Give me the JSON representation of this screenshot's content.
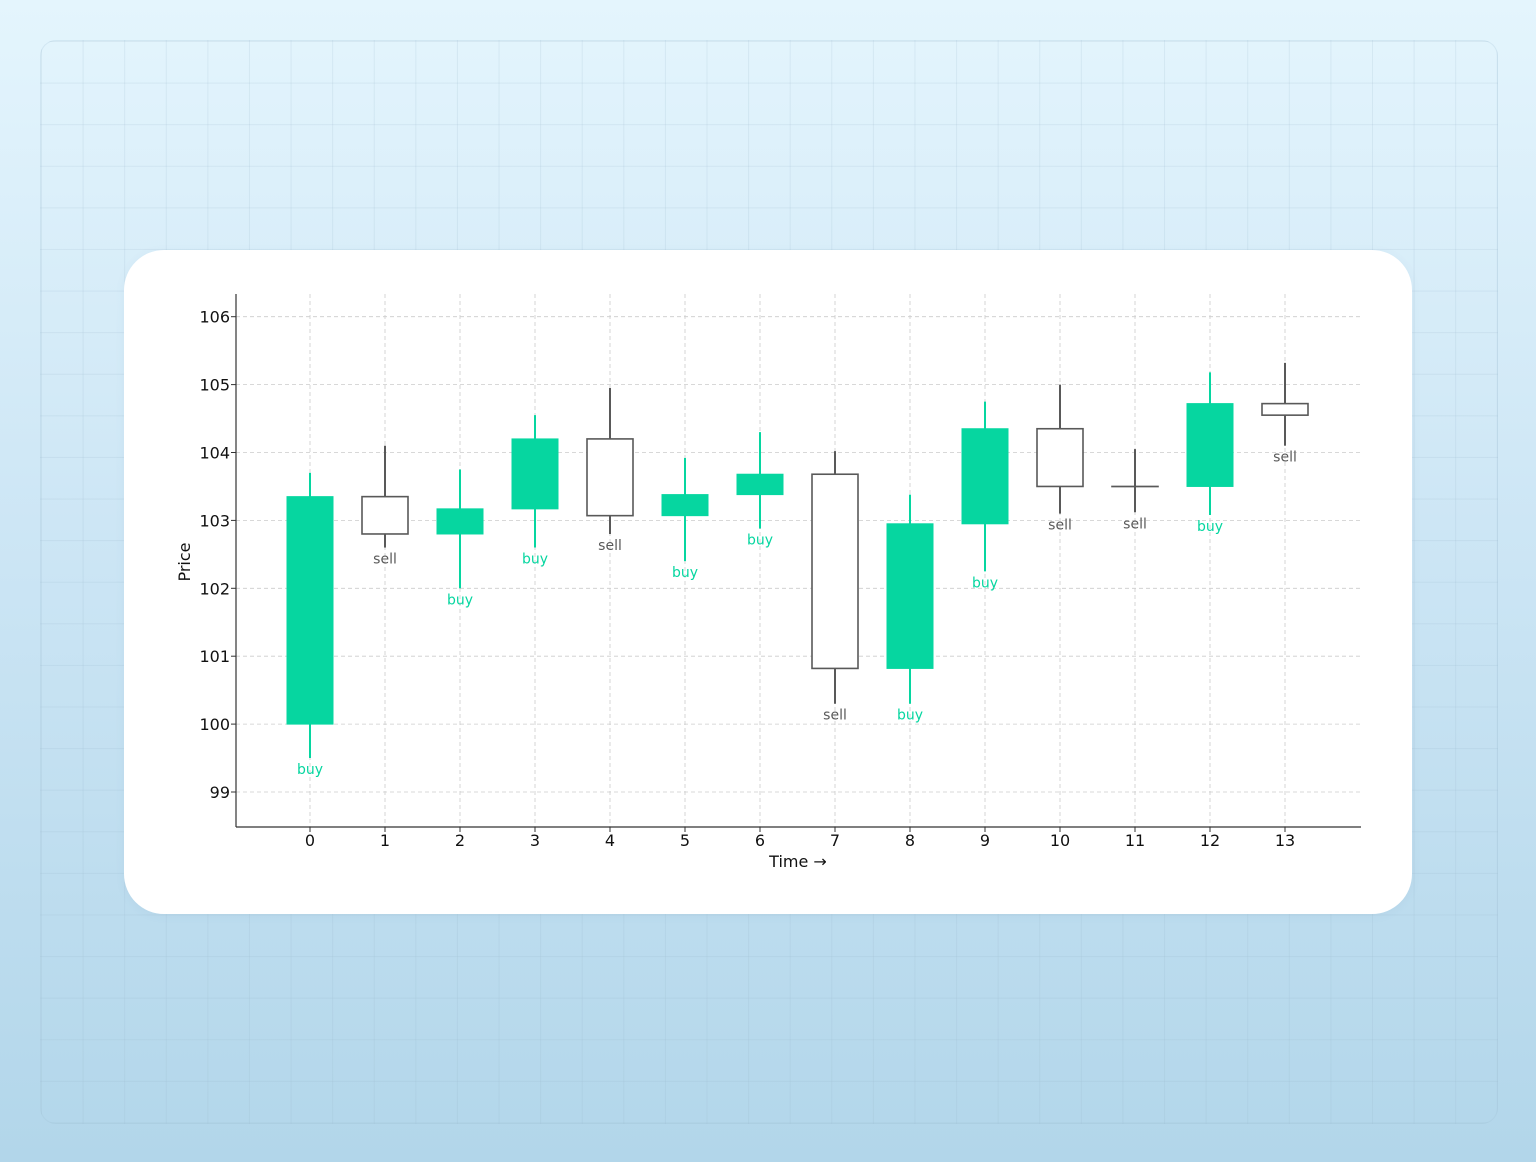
{
  "chart_data": {
    "type": "candlestick",
    "xlabel": "Time →",
    "ylabel": "Price",
    "x_ticks": [
      "0",
      "1",
      "2",
      "3",
      "4",
      "5",
      "6",
      "7",
      "8",
      "9",
      "10",
      "11",
      "12",
      "13"
    ],
    "y_ticks": [
      "99",
      "100",
      "101",
      "102",
      "103",
      "104",
      "105",
      "106"
    ],
    "ylim": [
      98.5,
      106.35
    ],
    "xlim": [
      -1,
      14
    ],
    "grid": true,
    "colors": {
      "buy": "#06d6a0",
      "sell": "#595959",
      "grid": "#cccccc",
      "axis": "#333333"
    },
    "candles": [
      {
        "t": 0,
        "open": 100.0,
        "close": 103.35,
        "high": 103.7,
        "low": 99.5,
        "signal": "buy"
      },
      {
        "t": 1,
        "open": 103.35,
        "close": 102.8,
        "high": 104.1,
        "low": 102.6,
        "signal": "sell"
      },
      {
        "t": 2,
        "open": 102.8,
        "close": 103.17,
        "high": 103.75,
        "low": 102.0,
        "signal": "buy"
      },
      {
        "t": 3,
        "open": 103.17,
        "close": 104.2,
        "high": 104.55,
        "low": 102.6,
        "signal": "buy"
      },
      {
        "t": 4,
        "open": 104.2,
        "close": 103.07,
        "high": 104.95,
        "low": 102.8,
        "signal": "sell"
      },
      {
        "t": 5,
        "open": 103.07,
        "close": 103.38,
        "high": 103.92,
        "low": 102.4,
        "signal": "buy"
      },
      {
        "t": 6,
        "open": 103.38,
        "close": 103.68,
        "high": 104.3,
        "low": 102.88,
        "signal": "buy"
      },
      {
        "t": 7,
        "open": 103.68,
        "close": 100.82,
        "high": 104.02,
        "low": 100.3,
        "signal": "sell"
      },
      {
        "t": 8,
        "open": 100.82,
        "close": 102.95,
        "high": 103.38,
        "low": 100.3,
        "signal": "buy"
      },
      {
        "t": 9,
        "open": 102.95,
        "close": 104.35,
        "high": 104.75,
        "low": 102.25,
        "signal": "buy"
      },
      {
        "t": 10,
        "open": 104.35,
        "close": 103.5,
        "high": 105.0,
        "low": 103.1,
        "signal": "sell"
      },
      {
        "t": 11,
        "open": 103.5,
        "close": 103.5,
        "high": 104.05,
        "low": 103.12,
        "signal": "sell"
      },
      {
        "t": 12,
        "open": 103.5,
        "close": 104.72,
        "high": 105.18,
        "low": 103.08,
        "signal": "buy"
      },
      {
        "t": 13,
        "open": 104.72,
        "close": 104.55,
        "high": 105.32,
        "low": 104.1,
        "signal": "sell"
      }
    ]
  }
}
